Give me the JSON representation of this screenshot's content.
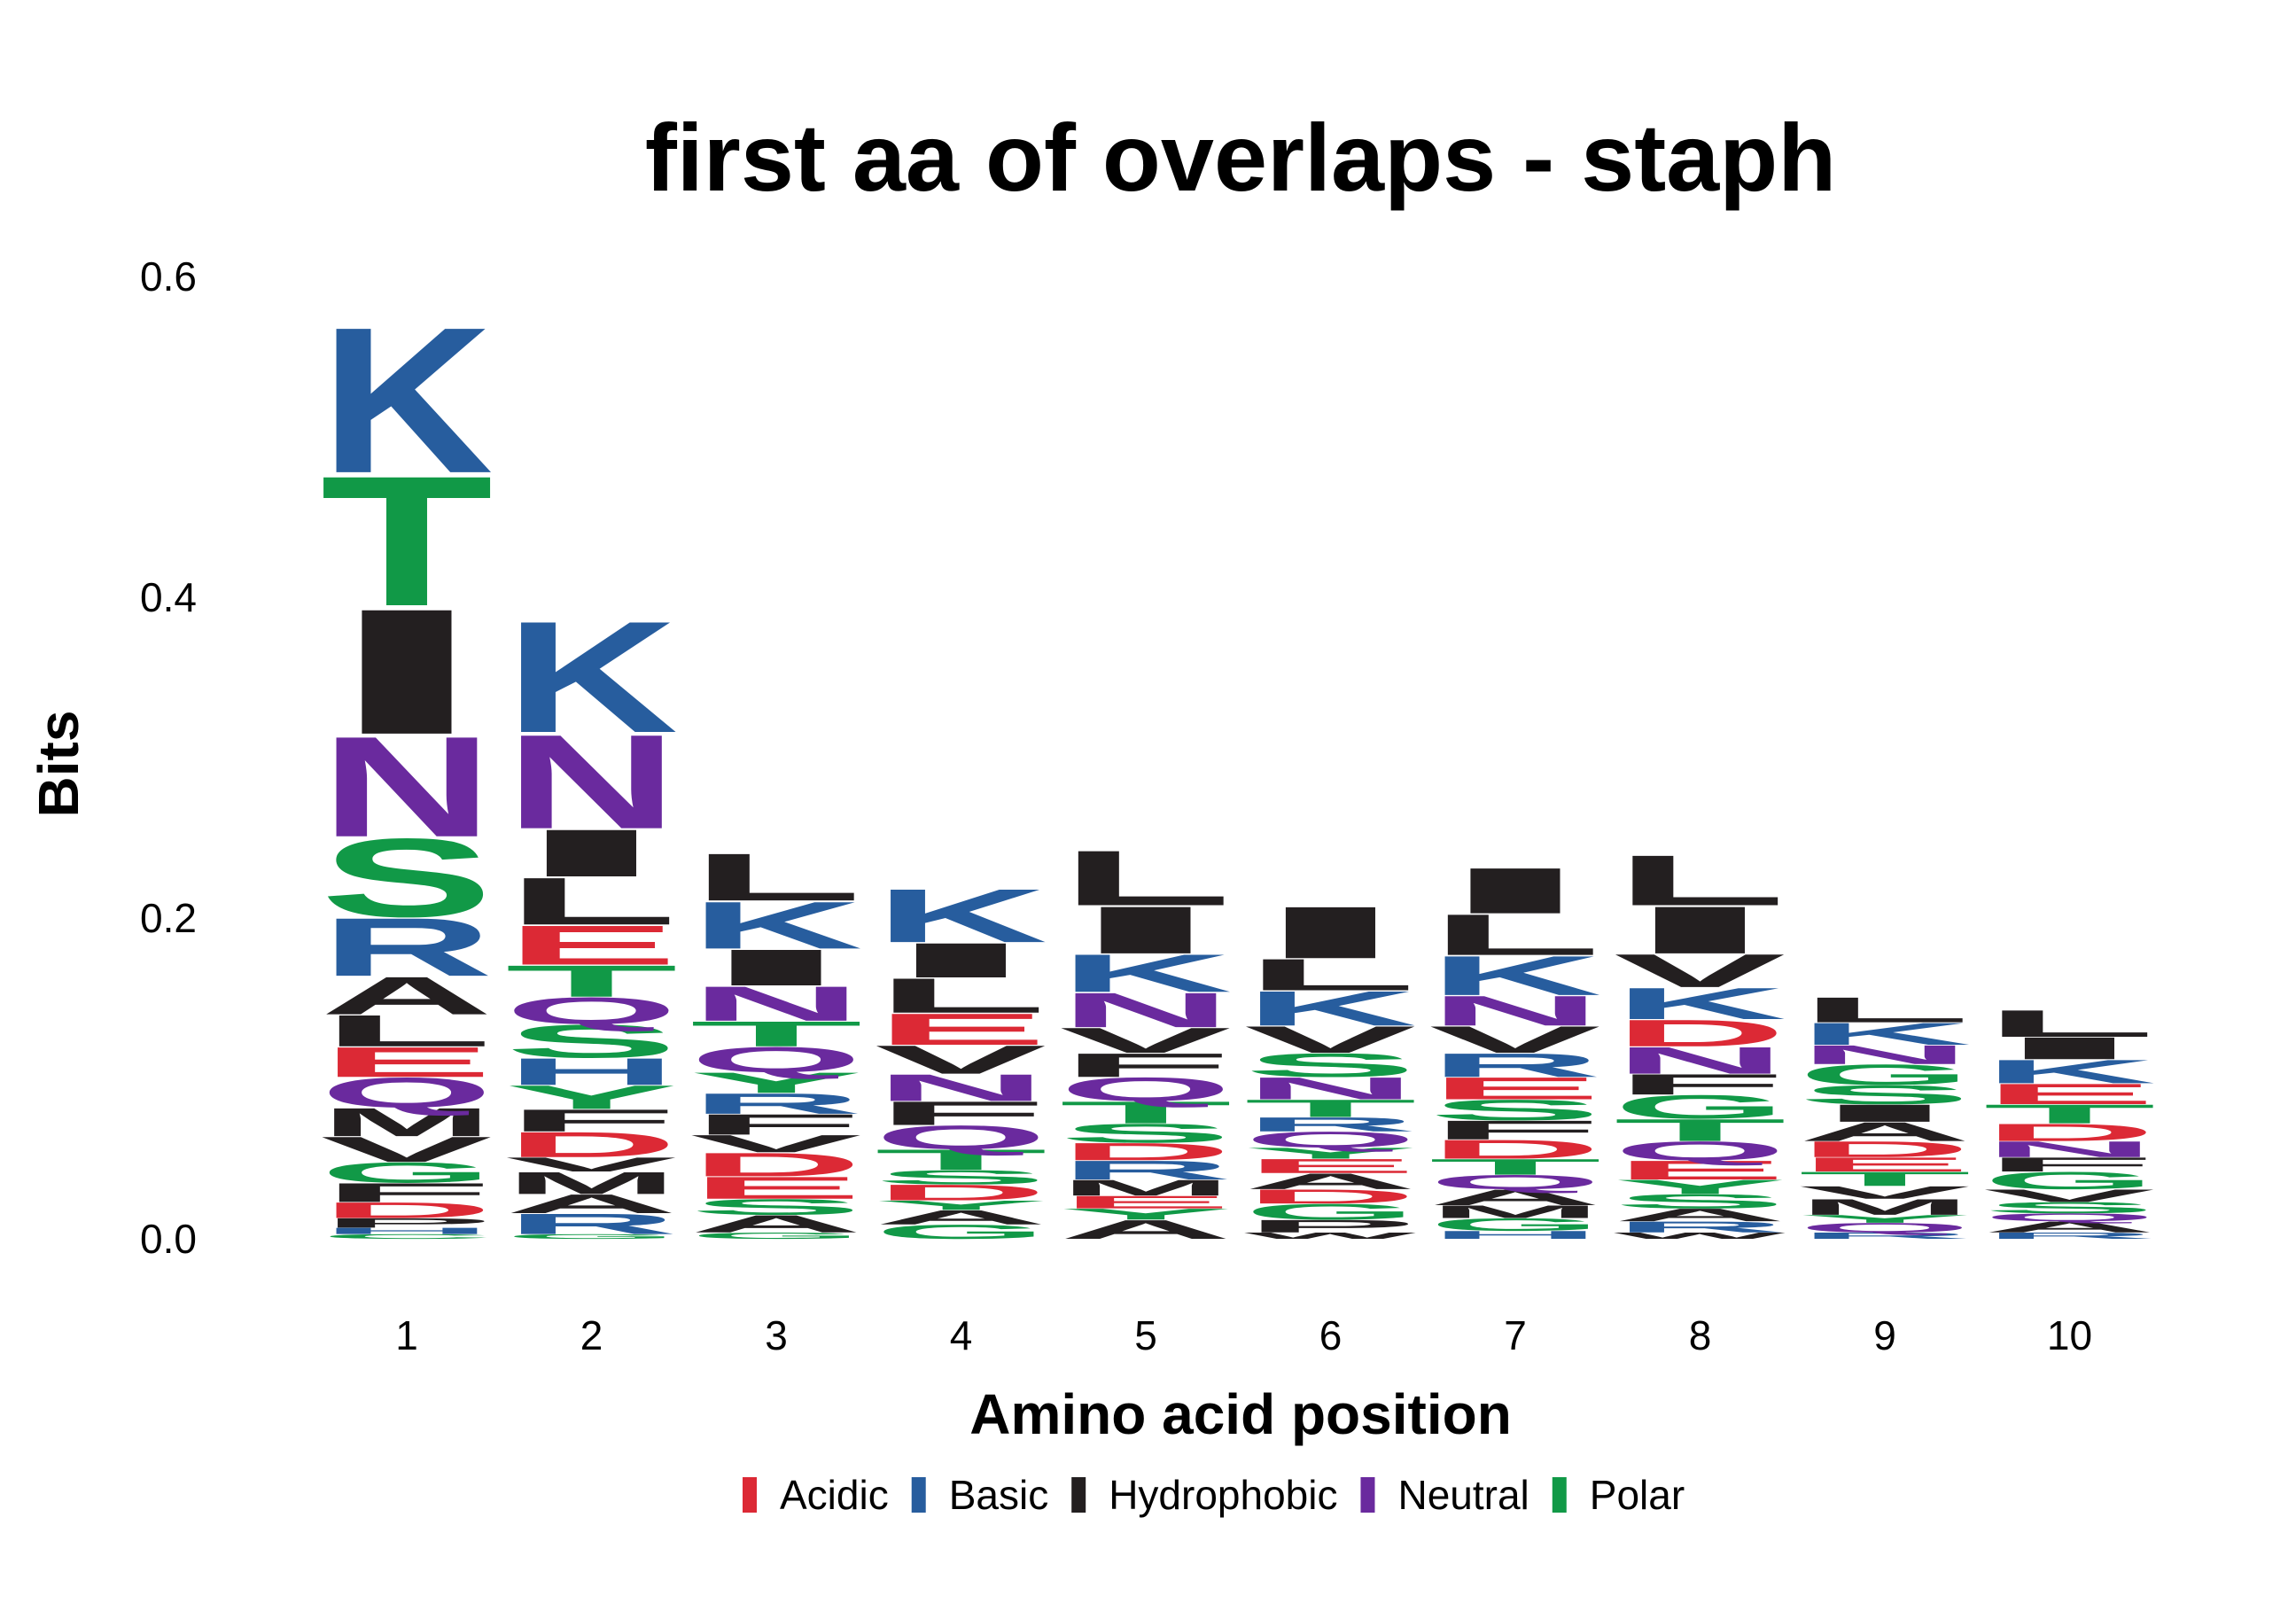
{
  "chart_data": {
    "type": "sequence-logo",
    "title": "first aa of overlaps - staph",
    "xlabel": "Amino acid position",
    "ylabel": "Bits",
    "ylim": [
      0,
      0.6
    ],
    "y_ticks": [
      "0.0",
      "0.2",
      "0.4",
      "0.6"
    ],
    "y_tick_values": [
      0,
      0.2,
      0.4,
      0.6
    ],
    "positions": [
      "1",
      "2",
      "3",
      "4",
      "5",
      "6",
      "7",
      "8",
      "9",
      "10"
    ],
    "grid": false,
    "legend_position": "bottom",
    "legend": [
      {
        "group": "Acidic",
        "label": "Acidic",
        "color": "#DC2935"
      },
      {
        "group": "Basic",
        "label": "Basic",
        "color": "#275D9E"
      },
      {
        "group": "Hydrophobic",
        "label": "Hydrophobic",
        "color": "#231F20"
      },
      {
        "group": "Neutral",
        "label": "Neutral",
        "color": "#6A2A9E"
      },
      {
        "group": "Polar",
        "label": "Polar",
        "color": "#119947"
      }
    ],
    "residue_groups": {
      "D": "Acidic",
      "E": "Acidic",
      "K": "Basic",
      "R": "Basic",
      "H": "Basic",
      "A": "Hydrophobic",
      "V": "Hydrophobic",
      "L": "Hydrophobic",
      "I": "Hydrophobic",
      "P": "Hydrophobic",
      "W": "Hydrophobic",
      "F": "Hydrophobic",
      "M": "Hydrophobic",
      "N": "Neutral",
      "Q": "Neutral",
      "S": "Polar",
      "T": "Polar",
      "G": "Polar",
      "Y": "Polar",
      "C": "Polar"
    },
    "stacks": [
      {
        "position": "1",
        "letters": [
          {
            "aa": "C",
            "bits": 0.003
          },
          {
            "aa": "H",
            "bits": 0.004
          },
          {
            "aa": "P",
            "bits": 0.006
          },
          {
            "aa": "D",
            "bits": 0.01
          },
          {
            "aa": "F",
            "bits": 0.012
          },
          {
            "aa": "G",
            "bits": 0.013
          },
          {
            "aa": "V",
            "bits": 0.016
          },
          {
            "aa": "M",
            "bits": 0.018
          },
          {
            "aa": "Q",
            "bits": 0.019
          },
          {
            "aa": "E",
            "bits": 0.019
          },
          {
            "aa": "L",
            "bits": 0.02
          },
          {
            "aa": "A",
            "bits": 0.024
          },
          {
            "aa": "R",
            "bits": 0.037
          },
          {
            "aa": "S",
            "bits": 0.05
          },
          {
            "aa": "N",
            "bits": 0.064
          },
          {
            "aa": "I",
            "bits": 0.08
          },
          {
            "aa": "T",
            "bits": 0.083
          },
          {
            "aa": "K",
            "bits": 0.093
          }
        ]
      },
      {
        "position": "2",
        "letters": [
          {
            "aa": "G",
            "bits": 0.003
          },
          {
            "aa": "R",
            "bits": 0.013
          },
          {
            "aa": "A",
            "bits": 0.012
          },
          {
            "aa": "M",
            "bits": 0.014
          },
          {
            "aa": "V",
            "bits": 0.009
          },
          {
            "aa": "D",
            "bits": 0.016
          },
          {
            "aa": "F",
            "bits": 0.014
          },
          {
            "aa": "Y",
            "bits": 0.015
          },
          {
            "aa": "H",
            "bits": 0.017
          },
          {
            "aa": "S",
            "bits": 0.021
          },
          {
            "aa": "Q",
            "bits": 0.017
          },
          {
            "aa": "T",
            "bits": 0.02
          },
          {
            "aa": "E",
            "bits": 0.025
          },
          {
            "aa": "L",
            "bits": 0.03
          },
          {
            "aa": "I",
            "bits": 0.03
          },
          {
            "aa": "N",
            "bits": 0.06
          },
          {
            "aa": "K",
            "bits": 0.071
          }
        ]
      },
      {
        "position": "3",
        "letters": [
          {
            "aa": "G",
            "bits": 0.004
          },
          {
            "aa": "A",
            "bits": 0.011
          },
          {
            "aa": "S",
            "bits": 0.01
          },
          {
            "aa": "E",
            "bits": 0.014
          },
          {
            "aa": "D",
            "bits": 0.015
          },
          {
            "aa": "V",
            "bits": 0.011
          },
          {
            "aa": "F",
            "bits": 0.013
          },
          {
            "aa": "R",
            "bits": 0.013
          },
          {
            "aa": "Y",
            "bits": 0.013
          },
          {
            "aa": "Q",
            "bits": 0.016
          },
          {
            "aa": "T",
            "bits": 0.016
          },
          {
            "aa": "N",
            "bits": 0.022
          },
          {
            "aa": "I",
            "bits": 0.023
          },
          {
            "aa": "K",
            "bits": 0.03
          },
          {
            "aa": "L",
            "bits": 0.03
          }
        ]
      },
      {
        "position": "4",
        "letters": [
          {
            "aa": "G",
            "bits": 0.009
          },
          {
            "aa": "A",
            "bits": 0.009
          },
          {
            "aa": "Y",
            "bits": 0.006
          },
          {
            "aa": "D",
            "bits": 0.01
          },
          {
            "aa": "S",
            "bits": 0.009
          },
          {
            "aa": "T",
            "bits": 0.013
          },
          {
            "aa": "Q",
            "bits": 0.015
          },
          {
            "aa": "F",
            "bits": 0.015
          },
          {
            "aa": "N",
            "bits": 0.017
          },
          {
            "aa": "V",
            "bits": 0.018
          },
          {
            "aa": "E",
            "bits": 0.02
          },
          {
            "aa": "L",
            "bits": 0.022
          },
          {
            "aa": "I",
            "bits": 0.022
          },
          {
            "aa": "K",
            "bits": 0.034
          }
        ]
      },
      {
        "position": "5",
        "letters": [
          {
            "aa": "A",
            "bits": 0.012
          },
          {
            "aa": "Y",
            "bits": 0.007
          },
          {
            "aa": "E",
            "bits": 0.008
          },
          {
            "aa": "M",
            "bits": 0.01
          },
          {
            "aa": "R",
            "bits": 0.012
          },
          {
            "aa": "D",
            "bits": 0.011
          },
          {
            "aa": "S",
            "bits": 0.012
          },
          {
            "aa": "T",
            "bits": 0.014
          },
          {
            "aa": "Q",
            "bits": 0.015
          },
          {
            "aa": "F",
            "bits": 0.015
          },
          {
            "aa": "V",
            "bits": 0.016
          },
          {
            "aa": "N",
            "bits": 0.022
          },
          {
            "aa": "K",
            "bits": 0.024
          },
          {
            "aa": "I",
            "bits": 0.03
          },
          {
            "aa": "L",
            "bits": 0.035
          }
        ]
      },
      {
        "position": "6",
        "letters": [
          {
            "aa": "W",
            "bits": 0.004
          },
          {
            "aa": "P",
            "bits": 0.008
          },
          {
            "aa": "G",
            "bits": 0.01
          },
          {
            "aa": "D",
            "bits": 0.009
          },
          {
            "aa": "A",
            "bits": 0.01
          },
          {
            "aa": "E",
            "bits": 0.009
          },
          {
            "aa": "Y",
            "bits": 0.007
          },
          {
            "aa": "Q",
            "bits": 0.01
          },
          {
            "aa": "R",
            "bits": 0.009
          },
          {
            "aa": "T",
            "bits": 0.011
          },
          {
            "aa": "N",
            "bits": 0.014
          },
          {
            "aa": "S",
            "bits": 0.015
          },
          {
            "aa": "V",
            "bits": 0.017
          },
          {
            "aa": "K",
            "bits": 0.022
          },
          {
            "aa": "L",
            "bits": 0.02
          },
          {
            "aa": "I",
            "bits": 0.033
          }
        ]
      },
      {
        "position": "7",
        "letters": [
          {
            "aa": "H",
            "bits": 0.005
          },
          {
            "aa": "G",
            "bits": 0.008
          },
          {
            "aa": "M",
            "bits": 0.008
          },
          {
            "aa": "A",
            "bits": 0.01
          },
          {
            "aa": "Q",
            "bits": 0.009
          },
          {
            "aa": "T",
            "bits": 0.01
          },
          {
            "aa": "D",
            "bits": 0.012
          },
          {
            "aa": "F",
            "bits": 0.012
          },
          {
            "aa": "S",
            "bits": 0.013
          },
          {
            "aa": "E",
            "bits": 0.014
          },
          {
            "aa": "R",
            "bits": 0.015
          },
          {
            "aa": "V",
            "bits": 0.017
          },
          {
            "aa": "N",
            "bits": 0.019
          },
          {
            "aa": "K",
            "bits": 0.025
          },
          {
            "aa": "L",
            "bits": 0.026
          },
          {
            "aa": "I",
            "bits": 0.029
          }
        ]
      },
      {
        "position": "8",
        "letters": [
          {
            "aa": "W",
            "bits": 0.004
          },
          {
            "aa": "R",
            "bits": 0.007
          },
          {
            "aa": "A",
            "bits": 0.008
          },
          {
            "aa": "S",
            "bits": 0.009
          },
          {
            "aa": "Y",
            "bits": 0.009
          },
          {
            "aa": "E",
            "bits": 0.012
          },
          {
            "aa": "Q",
            "bits": 0.012
          },
          {
            "aa": "T",
            "bits": 0.014
          },
          {
            "aa": "G",
            "bits": 0.015
          },
          {
            "aa": "F",
            "bits": 0.013
          },
          {
            "aa": "N",
            "bits": 0.017
          },
          {
            "aa": "D",
            "bits": 0.017
          },
          {
            "aa": "K",
            "bits": 0.02
          },
          {
            "aa": "V",
            "bits": 0.021
          },
          {
            "aa": "I",
            "bits": 0.03
          },
          {
            "aa": "L",
            "bits": 0.032
          }
        ]
      },
      {
        "position": "9",
        "letters": [
          {
            "aa": "R",
            "bits": 0.004
          },
          {
            "aa": "Q",
            "bits": 0.006
          },
          {
            "aa": "Y",
            "bits": 0.005
          },
          {
            "aa": "M",
            "bits": 0.01
          },
          {
            "aa": "V",
            "bits": 0.008
          },
          {
            "aa": "T",
            "bits": 0.009
          },
          {
            "aa": "E",
            "bits": 0.009
          },
          {
            "aa": "D",
            "bits": 0.01
          },
          {
            "aa": "A",
            "bits": 0.012
          },
          {
            "aa": "I",
            "bits": 0.011
          },
          {
            "aa": "S",
            "bits": 0.012
          },
          {
            "aa": "G",
            "bits": 0.013
          },
          {
            "aa": "N",
            "bits": 0.012
          },
          {
            "aa": "K",
            "bits": 0.014
          },
          {
            "aa": "L",
            "bits": 0.016
          }
        ]
      },
      {
        "position": "10",
        "letters": [
          {
            "aa": "R",
            "bits": 0.004
          },
          {
            "aa": "A",
            "bits": 0.007
          },
          {
            "aa": "Q",
            "bits": 0.005
          },
          {
            "aa": "S",
            "bits": 0.007
          },
          {
            "aa": "V",
            "bits": 0.008
          },
          {
            "aa": "G",
            "bits": 0.011
          },
          {
            "aa": "F",
            "bits": 0.009
          },
          {
            "aa": "N",
            "bits": 0.01
          },
          {
            "aa": "D",
            "bits": 0.011
          },
          {
            "aa": "T",
            "bits": 0.012
          },
          {
            "aa": "E",
            "bits": 0.013
          },
          {
            "aa": "K",
            "bits": 0.015
          },
          {
            "aa": "I",
            "bits": 0.014
          },
          {
            "aa": "L",
            "bits": 0.017
          }
        ]
      }
    ]
  }
}
